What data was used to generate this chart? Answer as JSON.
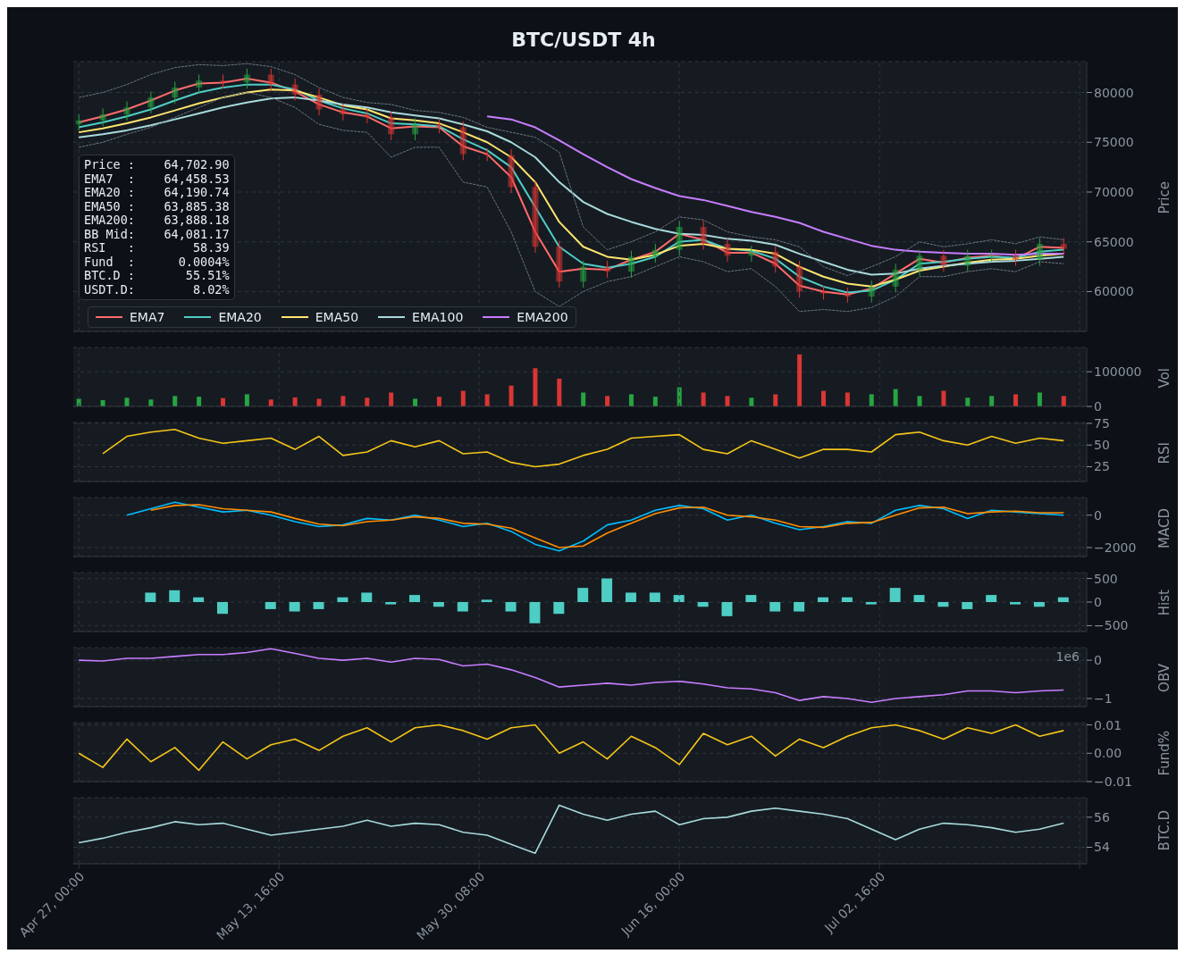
{
  "chart_data": [
    {
      "type": "candlestick",
      "title": "BTC/USDT  4h",
      "ylabel": "Price",
      "x": [
        "--04-27",
        "--04-29",
        "--05-01",
        "--05-03",
        "--05-05",
        "--05-07",
        "--05-09",
        "--05-11",
        "--05-13",
        "--05-15",
        "--05-17",
        "--05-19",
        "--05-21",
        "--05-23",
        "--05-25",
        "--05-27",
        "--05-29",
        "--05-31",
        "--06-02",
        "--06-04",
        "--06-06",
        "--06-08",
        "--06-10",
        "--06-12",
        "--06-14",
        "--06-16",
        "--06-18",
        "--06-20",
        "--06-22",
        "--06-24",
        "--06-26",
        "--06-28",
        "--06-30",
        "--07-02",
        "--07-04",
        "--07-06",
        "--07-08",
        "--07-10",
        "--07-12",
        "--07-14",
        "--07-16",
        "--07-18"
      ],
      "ohlc": [
        [
          76800,
          77800,
          76200,
          77200
        ],
        [
          77200,
          78400,
          76600,
          77800
        ],
        [
          77800,
          79100,
          77200,
          78500
        ],
        [
          78500,
          80100,
          77900,
          79500
        ],
        [
          79500,
          81100,
          78900,
          80500
        ],
        [
          80500,
          81800,
          79900,
          81200
        ],
        [
          81200,
          81800,
          80400,
          81000
        ],
        [
          81000,
          82400,
          80400,
          81800
        ],
        [
          81800,
          82400,
          80200,
          80800
        ],
        [
          80800,
          81400,
          79200,
          79800
        ],
        [
          79800,
          80400,
          77700,
          78300
        ],
        [
          78300,
          78900,
          77200,
          77800
        ],
        [
          77800,
          78400,
          76900,
          77500
        ],
        [
          77500,
          78100,
          75200,
          75800
        ],
        [
          75800,
          77400,
          75200,
          76800
        ],
        [
          76800,
          77400,
          75900,
          76500
        ],
        [
          76500,
          77100,
          73200,
          73800
        ],
        [
          73800,
          74400,
          73100,
          73700
        ],
        [
          73700,
          74300,
          69900,
          70500
        ],
        [
          70500,
          71100,
          63900,
          64500
        ],
        [
          64500,
          65100,
          60400,
          61000
        ],
        [
          61000,
          63100,
          60400,
          62500
        ],
        [
          62500,
          63100,
          61400,
          62000
        ],
        [
          62000,
          64100,
          61400,
          63500
        ],
        [
          63500,
          64800,
          62900,
          64200
        ],
        [
          64200,
          67100,
          63600,
          66500
        ],
        [
          66500,
          67100,
          64200,
          64800
        ],
        [
          64800,
          65400,
          63000,
          63600
        ],
        [
          63600,
          64600,
          63000,
          64000
        ],
        [
          64000,
          64600,
          61900,
          62500
        ],
        [
          62500,
          63100,
          59400,
          60000
        ],
        [
          60000,
          60600,
          59200,
          59800
        ],
        [
          59800,
          60400,
          58900,
          59500
        ],
        [
          59500,
          61100,
          58900,
          60500
        ],
        [
          60500,
          62800,
          59900,
          62200
        ],
        [
          62200,
          64200,
          61600,
          63600
        ],
        [
          63600,
          64200,
          62000,
          62600
        ],
        [
          62600,
          64200,
          62000,
          63600
        ],
        [
          63600,
          64200,
          63000,
          63600
        ],
        [
          63600,
          64200,
          62600,
          63200
        ],
        [
          63200,
          65400,
          62600,
          64800
        ],
        [
          64800,
          65400,
          63700,
          64300
        ]
      ],
      "colors": [
        "#26a641",
        "#26a641",
        "#26a641",
        "#26a641",
        "#26a641",
        "#26a641",
        "#da3633",
        "#26a641",
        "#da3633",
        "#da3633",
        "#da3633",
        "#da3633",
        "#da3633",
        "#da3633",
        "#26a641",
        "#da3633",
        "#da3633",
        "#da3633",
        "#da3633",
        "#da3633",
        "#da3633",
        "#26a641",
        "#da3633",
        "#26a641",
        "#26a641",
        "#26a641",
        "#da3633",
        "#da3633",
        "#26a641",
        "#da3633",
        "#da3633",
        "#da3633",
        "#da3633",
        "#26a641",
        "#26a641",
        "#26a641",
        "#da3633",
        "#26a641",
        "#26a641",
        "#da3633",
        "#26a641",
        "#da3633"
      ],
      "series": [
        {
          "type": "line",
          "name": "EMA7",
          "color": "#ff6b6b",
          "values": [
            77000,
            77600,
            78300,
            79200,
            80200,
            80900,
            81000,
            81400,
            81000,
            80100,
            78800,
            78000,
            77600,
            76400,
            76600,
            76500,
            74600,
            73800,
            71500,
            66000,
            62000,
            62300,
            62200,
            63200,
            64000,
            65800,
            65200,
            63900,
            63900,
            62800,
            60600,
            60000,
            59700,
            60300,
            61800,
            63300,
            62900,
            63400,
            63600,
            63300,
            64500,
            64400
          ]
        },
        {
          "type": "line",
          "name": "EMA20",
          "color": "#4ecdc4",
          "values": [
            76500,
            77000,
            77600,
            78300,
            79200,
            80000,
            80500,
            80800,
            80800,
            80300,
            79200,
            78400,
            77900,
            76900,
            76800,
            76600,
            75300,
            74200,
            72500,
            68500,
            64500,
            62800,
            62400,
            62800,
            63500,
            65000,
            65200,
            64300,
            64100,
            63300,
            61500,
            60500,
            59900,
            60100,
            61200,
            62800,
            63000,
            63300,
            63500,
            63400,
            64000,
            64200
          ]
        },
        {
          "type": "line",
          "name": "EMA50",
          "color": "#ffe66d",
          "values": [
            76000,
            76400,
            76900,
            77500,
            78200,
            78900,
            79500,
            80000,
            80300,
            80200,
            79500,
            78700,
            78300,
            77400,
            77200,
            76900,
            76000,
            75000,
            73500,
            71000,
            67000,
            64500,
            63500,
            63200,
            63700,
            64600,
            64800,
            64300,
            64200,
            63800,
            62500,
            61500,
            60800,
            60500,
            61200,
            62100,
            62500,
            62900,
            63200,
            63300,
            63600,
            63800
          ]
        },
        {
          "type": "line",
          "name": "EMA100",
          "color": "#a8dadc",
          "values": [
            75500,
            75800,
            76200,
            76700,
            77300,
            77900,
            78500,
            79000,
            79400,
            79500,
            79200,
            78800,
            78500,
            78000,
            77700,
            77400,
            76800,
            76100,
            75000,
            73500,
            71000,
            69000,
            67800,
            67000,
            66300,
            65800,
            65700,
            65300,
            65100,
            64700,
            63800,
            63000,
            62200,
            61700,
            61800,
            62300,
            62600,
            62800,
            63000,
            63100,
            63300,
            63500
          ]
        },
        {
          "type": "line",
          "name": "EMA200",
          "color": "#c77dff",
          "values": [
            null,
            null,
            null,
            null,
            null,
            null,
            null,
            null,
            null,
            null,
            null,
            null,
            null,
            null,
            null,
            null,
            null,
            77600,
            77300,
            76500,
            75200,
            73800,
            72500,
            71300,
            70400,
            69600,
            69200,
            68600,
            68000,
            67500,
            66900,
            66000,
            65300,
            64600,
            64200,
            64000,
            63900,
            63800,
            63800,
            63700,
            63800,
            63800
          ]
        },
        {
          "type": "line",
          "color": "#6e7681",
          "line_style": "dashed",
          "values": [
            79500,
            80000,
            80800,
            81800,
            82500,
            82800,
            82700,
            82900,
            82600,
            81800,
            80500,
            79500,
            79000,
            78800,
            78200,
            78000,
            77500,
            76500,
            76000,
            75500,
            74000,
            66500,
            64200,
            65000,
            66000,
            67500,
            67200,
            66000,
            65500,
            65200,
            64500,
            62500,
            61600,
            62500,
            63500,
            65000,
            64500,
            64800,
            65200,
            64800,
            65500,
            65200
          ]
        },
        {
          "type": "line",
          "color": "#6e7681",
          "line_style": "dashed",
          "values": [
            74500,
            75000,
            75800,
            76500,
            77500,
            78500,
            79500,
            80000,
            79500,
            78500,
            76800,
            76200,
            76000,
            73500,
            74500,
            74500,
            71000,
            70500,
            66000,
            60000,
            58500,
            60000,
            61000,
            61500,
            62500,
            63500,
            63000,
            62000,
            62300,
            60500,
            58000,
            58200,
            58000,
            58400,
            59500,
            61500,
            61500,
            62000,
            62300,
            62000,
            63000,
            62800
          ]
        }
      ],
      "xlim": [
        "--04-26T13:00",
        "--07-19T22:00"
      ],
      "xticks": [
        {
          "value": "--04-27T00:00",
          "label": "Apr 27, 00:00"
        },
        {
          "value": "--05-13T16:00",
          "label": "May 13, 16:00"
        },
        {
          "value": "--05-30T08:00",
          "label": "May 30, 08:00"
        },
        {
          "value": "--06-16T00:00",
          "label": "Jun 16, 00:00"
        },
        {
          "value": "--07-02T16:00",
          "label": "Jul 02, 16:00"
        },
        {
          "value": "--07-19T08:00",
          "label": null
        }
      ],
      "ylim": [
        56000,
        83100
      ],
      "yticks": [
        60000,
        65000,
        70000,
        75000,
        80000
      ],
      "grid": true,
      "legend": "bottom left",
      "tick_labels": "y",
      "annotations": [
        "Price :    64,702.90",
        "EMA7  :    64,458.53",
        "EMA20 :    64,190.74",
        "EMA50 :    63,885.38",
        "EMA200:    63,888.18",
        "BB Mid:    64,081.17",
        "RSI   :        58.39",
        "Fund  :      0.0004%",
        "BTC.D :       55.51%",
        "USDT.D:        8.02%"
      ]
    },
    {
      "type": "bar",
      "ylabel": "Vol",
      "x": [
        "--04-27",
        "--04-29",
        "--05-01",
        "--05-03",
        "--05-05",
        "--05-07",
        "--05-09",
        "--05-11",
        "--05-13",
        "--05-15",
        "--05-17",
        "--05-19",
        "--05-21",
        "--05-23",
        "--05-25",
        "--05-27",
        "--05-29",
        "--05-31",
        "--06-02",
        "--06-04",
        "--06-06",
        "--06-08",
        "--06-10",
        "--06-12",
        "--06-14",
        "--06-16",
        "--06-18",
        "--06-20",
        "--06-22",
        "--06-24",
        "--06-26",
        "--06-28",
        "--06-30",
        "--07-02",
        "--07-04",
        "--07-06",
        "--07-08",
        "--07-10",
        "--07-12",
        "--07-14",
        "--07-16",
        "--07-18"
      ],
      "values": [
        22000,
        18000,
        25000,
        20000,
        30000,
        28000,
        24000,
        35000,
        20000,
        26000,
        22000,
        30000,
        25000,
        40000,
        22000,
        28000,
        45000,
        35000,
        60000,
        110000,
        80000,
        40000,
        30000,
        35000,
        28000,
        55000,
        40000,
        30000,
        25000,
        35000,
        150000,
        45000,
        40000,
        35000,
        50000,
        30000,
        45000,
        25000,
        30000,
        35000,
        40000,
        30000
      ],
      "colors": [
        "#26a641",
        "#26a641",
        "#26a641",
        "#26a641",
        "#26a641",
        "#26a641",
        "#da3633",
        "#26a641",
        "#da3633",
        "#da3633",
        "#da3633",
        "#da3633",
        "#da3633",
        "#da3633",
        "#26a641",
        "#da3633",
        "#da3633",
        "#da3633",
        "#da3633",
        "#da3633",
        "#da3633",
        "#26a641",
        "#da3633",
        "#26a641",
        "#26a641",
        "#26a641",
        "#da3633",
        "#da3633",
        "#26a641",
        "#da3633",
        "#da3633",
        "#da3633",
        "#da3633",
        "#26a641",
        "#26a641",
        "#26a641",
        "#da3633",
        "#26a641",
        "#26a641",
        "#da3633",
        "#26a641",
        "#da3633"
      ],
      "xlim": [
        "--04-26T13:00",
        "--07-19T22:00"
      ],
      "xticks": [
        {
          "value": "--04-27T00:00",
          "label": "Apr 27, 00:00"
        },
        {
          "value": "--05-13T16:00",
          "label": "May 13, 16:00"
        },
        {
          "value": "--05-30T08:00",
          "label": "May 30, 08:00"
        },
        {
          "value": "--06-16T00:00",
          "label": "Jun 16, 00:00"
        },
        {
          "value": "--07-02T16:00",
          "label": "Jul 02, 16:00"
        },
        {
          "value": "--07-19T08:00",
          "label": null
        }
      ],
      "ylim": [
        0,
        170000
      ],
      "yticks": [
        0,
        100000
      ],
      "grid": true,
      "tick_labels": "y"
    },
    {
      "type": "line",
      "ylabel": "RSI",
      "series": [
        {
          "color": "#f5c518",
          "x": [
            "--04-29",
            "--05-01",
            "--05-03",
            "--05-05",
            "--05-07",
            "--05-09",
            "--05-11",
            "--05-13",
            "--05-15",
            "--05-17",
            "--05-19",
            "--05-21",
            "--05-23",
            "--05-25",
            "--05-27",
            "--05-29",
            "--05-31",
            "--06-02",
            "--06-04",
            "--06-06",
            "--06-08",
            "--06-10",
            "--06-12",
            "--06-14",
            "--06-16",
            "--06-18",
            "--06-20",
            "--06-22",
            "--06-24",
            "--06-26",
            "--06-28",
            "--06-30",
            "--07-02",
            "--07-04",
            "--07-06",
            "--07-08",
            "--07-10",
            "--07-12",
            "--07-14",
            "--07-16",
            "--07-18"
          ],
          "values": [
            40,
            60,
            65,
            68,
            58,
            52,
            55,
            58,
            45,
            60,
            38,
            42,
            55,
            48,
            55,
            40,
            42,
            30,
            25,
            28,
            38,
            45,
            58,
            60,
            62,
            45,
            40,
            55,
            45,
            35,
            45,
            45,
            42,
            62,
            65,
            55,
            50,
            60,
            52,
            58,
            55
          ]
        }
      ],
      "xlim": [
        "--04-26T13:00",
        "--07-19T22:00"
      ],
      "xticks": [
        {
          "value": "--04-27T00:00",
          "label": "Apr 27, 00:00"
        },
        {
          "value": "--05-13T16:00",
          "label": "May 13, 16:00"
        },
        {
          "value": "--05-30T08:00",
          "label": "May 30, 08:00"
        },
        {
          "value": "--06-16T00:00",
          "label": "Jun 16, 00:00"
        },
        {
          "value": "--07-02T16:00",
          "label": "Jul 02, 16:00"
        },
        {
          "value": "--07-19T08:00",
          "label": null
        }
      ],
      "ylim": [
        8,
        76
      ],
      "yticks": [
        25,
        50,
        75
      ],
      "grid": true,
      "tick_labels": "y"
    },
    {
      "type": "line",
      "ylabel": "MACD",
      "series": [
        {
          "color": "#00bfff",
          "x": [
            "--05-01",
            "--05-03",
            "--05-05",
            "--05-07",
            "--05-09",
            "--05-11",
            "--05-13",
            "--05-15",
            "--05-17",
            "--05-19",
            "--05-21",
            "--05-23",
            "--05-25",
            "--05-27",
            "--05-29",
            "--05-31",
            "--06-02",
            "--06-04",
            "--06-06",
            "--06-08",
            "--06-10",
            "--06-12",
            "--06-14",
            "--06-16",
            "--06-18",
            "--06-20",
            "--06-22",
            "--06-24",
            "--06-26",
            "--06-28",
            "--06-30",
            "--07-02",
            "--07-04",
            "--07-06",
            "--07-08",
            "--07-10",
            "--07-12",
            "--07-14",
            "--07-16",
            "--07-18"
          ],
          "values": [
            0,
            400,
            800,
            500,
            200,
            300,
            0,
            -400,
            -700,
            -600,
            -200,
            -300,
            0,
            -300,
            -700,
            -500,
            -1000,
            -1800,
            -2200,
            -1600,
            -600,
            -300,
            300,
            600,
            400,
            -300,
            0,
            -500,
            -900,
            -700,
            -400,
            -500,
            300,
            600,
            400,
            -200,
            300,
            200,
            100,
            0
          ]
        },
        {
          "color": "#ff8c00",
          "x": [
            "--05-03",
            "--05-05",
            "--05-07",
            "--05-09",
            "--05-11",
            "--05-13",
            "--05-15",
            "--05-17",
            "--05-19",
            "--05-21",
            "--05-23",
            "--05-25",
            "--05-27",
            "--05-29",
            "--05-31",
            "--06-02",
            "--06-04",
            "--06-06",
            "--06-08",
            "--06-10",
            "--06-12",
            "--06-14",
            "--06-16",
            "--06-18",
            "--06-20",
            "--06-22",
            "--06-24",
            "--06-26",
            "--06-28",
            "--06-30",
            "--07-02",
            "--07-04",
            "--07-06",
            "--07-08",
            "--07-10",
            "--07-12",
            "--07-14",
            "--07-16",
            "--07-18"
          ],
          "values": [
            300,
            600,
            650,
            400,
            300,
            200,
            -200,
            -550,
            -650,
            -400,
            -300,
            -100,
            -200,
            -500,
            -550,
            -800,
            -1400,
            -2000,
            -1900,
            -1100,
            -500,
            100,
            450,
            500,
            0,
            -100,
            -300,
            -700,
            -750,
            -500,
            -450,
            0,
            450,
            500,
            100,
            200,
            250,
            150,
            150
          ]
        }
      ],
      "xlim": [
        "--04-26T13:00",
        "--07-19T22:00"
      ],
      "xticks": [
        {
          "value": "--04-27T00:00",
          "label": "Apr 27, 00:00"
        },
        {
          "value": "--05-13T16:00",
          "label": "May 13, 16:00"
        },
        {
          "value": "--05-30T08:00",
          "label": "May 30, 08:00"
        },
        {
          "value": "--06-16T00:00",
          "label": "Jun 16, 00:00"
        },
        {
          "value": "--07-02T16:00",
          "label": "Jul 02, 16:00"
        },
        {
          "value": "--07-19T08:00",
          "label": null
        }
      ],
      "ylim": [
        -2550,
        1090
      ],
      "yticks": [
        {
          "value": -2000,
          "label": "−2000"
        },
        0
      ],
      "grid": true,
      "tick_labels": "y"
    },
    {
      "type": "bar",
      "ylabel": "Hist",
      "color": "#4ecdc4",
      "x": [
        "--05-03",
        "--05-05",
        "--05-07",
        "--05-09",
        "--05-11",
        "--05-13",
        "--05-15",
        "--05-17",
        "--05-19",
        "--05-21",
        "--05-23",
        "--05-25",
        "--05-27",
        "--05-29",
        "--05-31",
        "--06-02",
        "--06-04",
        "--06-06",
        "--06-08",
        "--06-10",
        "--06-12",
        "--06-14",
        "--06-16",
        "--06-18",
        "--06-20",
        "--06-22",
        "--06-24",
        "--06-26",
        "--06-28",
        "--06-30",
        "--07-02",
        "--07-04",
        "--07-06",
        "--07-08",
        "--07-10",
        "--07-12",
        "--07-14",
        "--07-16",
        "--07-18"
      ],
      "values": [
        200,
        250,
        100,
        -250,
        0,
        -150,
        -200,
        -150,
        100,
        200,
        -50,
        150,
        -100,
        -200,
        50,
        -200,
        -450,
        -250,
        300,
        500,
        200,
        200,
        150,
        -100,
        -300,
        150,
        -200,
        -200,
        100,
        100,
        -50,
        300,
        150,
        -100,
        -150,
        150,
        -50,
        -100,
        100
      ],
      "xlim": [
        "--04-26T13:00",
        "--07-19T22:00"
      ],
      "xticks": [
        {
          "value": "--04-27T00:00",
          "label": "Apr 27, 00:00"
        },
        {
          "value": "--05-13T16:00",
          "label": "May 13, 16:00"
        },
        {
          "value": "--05-30T08:00",
          "label": "May 30, 08:00"
        },
        {
          "value": "--06-16T00:00",
          "label": "Jun 16, 00:00"
        },
        {
          "value": "--07-02T16:00",
          "label": "Jul 02, 16:00"
        },
        {
          "value": "--07-19T08:00",
          "label": null
        }
      ],
      "ylim": [
        -625,
        625
      ],
      "yticks": [
        {
          "value": -500,
          "label": "−500"
        },
        0,
        500
      ],
      "grid": true,
      "tick_labels": "y"
    },
    {
      "type": "line",
      "ylabel": "OBV",
      "annotations": [
        "1e6"
      ],
      "x": [
        "--04-27",
        "--04-29",
        "--05-01",
        "--05-03",
        "--05-05",
        "--05-07",
        "--05-09",
        "--05-11",
        "--05-13",
        "--05-15",
        "--05-17",
        "--05-19",
        "--05-21",
        "--05-23",
        "--05-25",
        "--05-27",
        "--05-29",
        "--05-31",
        "--06-02",
        "--06-04",
        "--06-06",
        "--06-08",
        "--06-10",
        "--06-12",
        "--06-14",
        "--06-16",
        "--06-18",
        "--06-20",
        "--06-22",
        "--06-24",
        "--06-26",
        "--06-28",
        "--06-30",
        "--07-02",
        "--07-04",
        "--07-06",
        "--07-08",
        "--07-10",
        "--07-12",
        "--07-14",
        "--07-16",
        "--07-18"
      ],
      "series": [
        {
          "color": "#c77dff",
          "values": [
            0,
            -0.02,
            0.05,
            0.05,
            0.1,
            0.15,
            0.15,
            0.2,
            0.3,
            0.18,
            0.05,
            0,
            0.05,
            -0.05,
            0.05,
            0.02,
            -0.15,
            -0.1,
            -0.25,
            -0.45,
            -0.7,
            -0.65,
            -0.6,
            -0.65,
            -0.58,
            -0.55,
            -0.62,
            -0.72,
            -0.75,
            -0.85,
            -1.05,
            -0.95,
            -1,
            -1.1,
            -1,
            -0.95,
            -0.9,
            -0.8,
            -0.8,
            -0.85,
            -0.8,
            -0.78
          ]
        }
      ],
      "xlim": [
        "--04-26T13:00",
        "--07-19T22:00"
      ],
      "xticks": [
        {
          "value": "--04-27T00:00",
          "label": "Apr 27, 00:00"
        },
        {
          "value": "--05-13T16:00",
          "label": "May 13, 16:00"
        },
        {
          "value": "--05-30T08:00",
          "label": "May 30, 08:00"
        },
        {
          "value": "--06-16T00:00",
          "label": "Jun 16, 00:00"
        },
        {
          "value": "--07-02T16:00",
          "label": "Jul 02, 16:00"
        },
        {
          "value": "--07-19T08:00",
          "label": null
        }
      ],
      "ylim": [
        -1.21,
        0.33
      ],
      "yticks": [
        {
          "value": -1,
          "label": "−1"
        },
        0
      ],
      "grid": true,
      "tick_labels": "y"
    },
    {
      "type": "line",
      "ylabel": "Fund%",
      "x": [
        "--04-27",
        "--04-29",
        "--05-01",
        "--05-03",
        "--05-05",
        "--05-07",
        "--05-09",
        "--05-11",
        "--05-13",
        "--05-15",
        "--05-17",
        "--05-19",
        "--05-21",
        "--05-23",
        "--05-25",
        "--05-27",
        "--05-29",
        "--05-31",
        "--06-02",
        "--06-04",
        "--06-06",
        "--06-08",
        "--06-10",
        "--06-12",
        "--06-14",
        "--06-16",
        "--06-18",
        "--06-20",
        "--06-22",
        "--06-24",
        "--06-26",
        "--06-28",
        "--06-30",
        "--07-02",
        "--07-04",
        "--07-06",
        "--07-08",
        "--07-10",
        "--07-12",
        "--07-14",
        "--07-16",
        "--07-18"
      ],
      "series": [
        {
          "color": "#f5c518",
          "values": [
            0,
            -0.005,
            0.005,
            -0.003,
            0.002,
            -0.006,
            0.004,
            -0.002,
            0.003,
            0.005,
            0.001,
            0.006,
            0.009,
            0.004,
            0.009,
            0.01,
            0.008,
            0.005,
            0.009,
            0.01,
            0,
            0.004,
            -0.002,
            0.006,
            0.002,
            -0.004,
            0.007,
            0.003,
            0.006,
            -0.001,
            0.005,
            0.002,
            0.006,
            0.009,
            0.01,
            0.008,
            0.005,
            0.009,
            0.007,
            0.01,
            0.006,
            0.008
          ]
        }
      ],
      "xlim": [
        "--04-26T13:00",
        "--07-19T22:00"
      ],
      "xticks": [
        {
          "value": "--04-27T00:00",
          "label": "Apr 27, 00:00"
        },
        {
          "value": "--05-13T16:00",
          "label": "May 13, 16:00"
        },
        {
          "value": "--05-30T08:00",
          "label": "May 30, 08:00"
        },
        {
          "value": "--06-16T00:00",
          "label": "Jun 16, 00:00"
        },
        {
          "value": "--07-02T16:00",
          "label": "Jul 02, 16:00"
        },
        {
          "value": "--07-19T08:00",
          "label": null
        }
      ],
      "ylim": [
        -0.01,
        0.0108
      ],
      "yticks": [
        {
          "value": -0.01,
          "label": "−0.01"
        },
        {
          "value": 0,
          "label": "0.00"
        },
        0.01
      ],
      "grid": true,
      "tick_labels": "y"
    },
    {
      "type": "line",
      "ylabel": "BTC.D",
      "x": [
        "--04-27",
        "--04-29",
        "--05-01",
        "--05-03",
        "--05-05",
        "--05-07",
        "--05-09",
        "--05-11",
        "--05-13",
        "--05-15",
        "--05-17",
        "--05-19",
        "--05-21",
        "--05-23",
        "--05-25",
        "--05-27",
        "--05-29",
        "--05-31",
        "--06-02",
        "--06-04",
        "--06-06",
        "--06-08",
        "--06-10",
        "--06-12",
        "--06-14",
        "--06-16",
        "--06-18",
        "--06-20",
        "--06-22",
        "--06-24",
        "--06-26",
        "--06-28",
        "--06-30",
        "--07-02",
        "--07-04",
        "--07-06",
        "--07-08",
        "--07-10",
        "--07-12",
        "--07-14",
        "--07-16",
        "--07-18"
      ],
      "series": [
        {
          "color": "#a8dadc",
          "values": [
            54.3,
            54.6,
            55,
            55.3,
            55.7,
            55.5,
            55.6,
            55.2,
            54.8,
            55,
            55.2,
            55.4,
            55.8,
            55.4,
            55.6,
            55.5,
            55,
            54.8,
            54.2,
            53.6,
            56.8,
            56.2,
            55.8,
            56.2,
            56.4,
            55.5,
            55.9,
            56,
            56.4,
            56.6,
            56.4,
            56.2,
            55.9,
            55.2,
            54.5,
            55.2,
            55.6,
            55.5,
            55.3,
            55,
            55.2,
            55.6
          ]
        }
      ],
      "xlim": [
        "--04-26T13:00",
        "--07-19T22:00"
      ],
      "xticks": [
        {
          "value": "--04-27T00:00",
          "label": "Apr 27, 00:00"
        },
        {
          "value": "--05-13T16:00",
          "label": "May 13, 16:00"
        },
        {
          "value": "--05-30T08:00",
          "label": "May 30, 08:00"
        },
        {
          "value": "--06-16T00:00",
          "label": "Jun 16, 00:00"
        },
        {
          "value": "--07-02T16:00",
          "label": "Jul 02, 16:00"
        },
        {
          "value": "--07-19T08:00",
          "label": null
        }
      ],
      "ylim": [
        52.9,
        57.3
      ],
      "yticks": [
        54,
        56
      ],
      "grid": true
    }
  ]
}
